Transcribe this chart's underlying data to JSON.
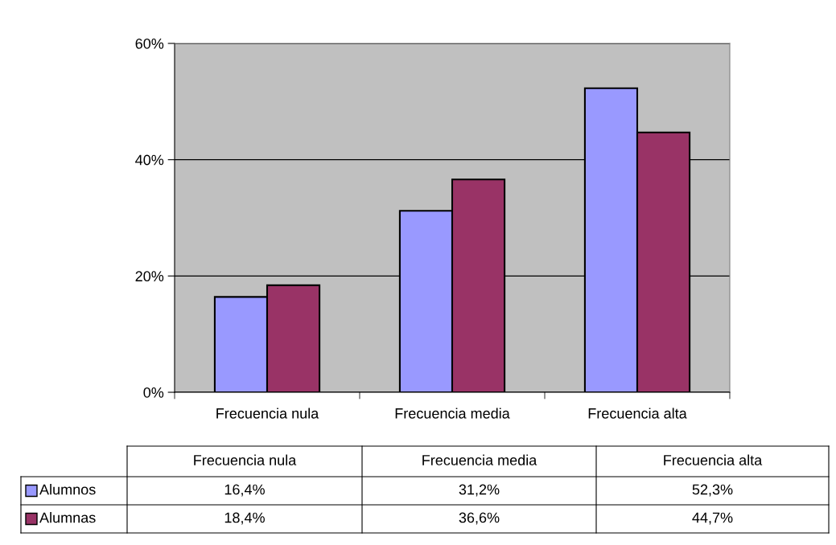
{
  "chart_data": {
    "type": "bar",
    "categories": [
      "Frecuencia nula",
      "Frecuencia media",
      "Frecuencia alta"
    ],
    "series": [
      {
        "name": "Alumnos",
        "color": "#9999ff",
        "values": [
          16.4,
          31.2,
          52.3
        ],
        "value_labels": [
          "16,4%",
          "31,2%",
          "52,3%"
        ]
      },
      {
        "name": "Alumnas",
        "color": "#993366",
        "values": [
          18.4,
          36.6,
          44.7
        ],
        "value_labels": [
          "18,4%",
          "36,6%",
          "44,7%"
        ]
      }
    ],
    "ylim": [
      0,
      60
    ],
    "yticks": [
      {
        "value": 0,
        "label": "0%"
      },
      {
        "value": 20,
        "label": "20%"
      },
      {
        "value": 40,
        "label": "40%"
      },
      {
        "value": 60,
        "label": "60%"
      }
    ],
    "grid": "y",
    "legend": "bottom left"
  }
}
